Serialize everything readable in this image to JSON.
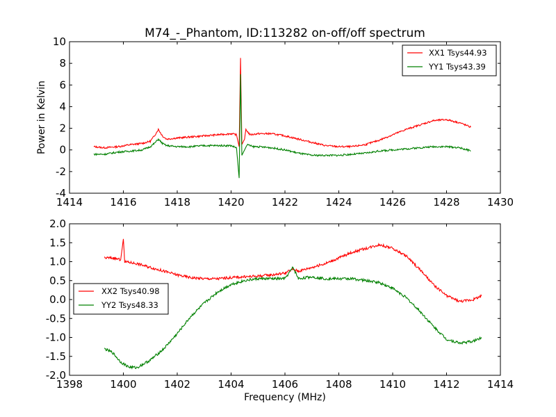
{
  "figure": {
    "title": "M74_-_Phantom, ID:113282 on-off/off spectrum"
  },
  "colors": {
    "xx": "#ff0000",
    "yy": "#008000"
  },
  "chart_data": [
    {
      "type": "line",
      "title": "M74_-_Phantom, ID:113282 on-off/off spectrum",
      "xlabel": "",
      "ylabel": "Power in Kelvin",
      "xlim": [
        1414,
        1430
      ],
      "ylim": [
        -4,
        10
      ],
      "xticks": [
        "1414",
        "1416",
        "1418",
        "1420",
        "1422",
        "1424",
        "1426",
        "1428",
        "1430"
      ],
      "yticks": [
        "-4",
        "-2",
        "0",
        "2",
        "4",
        "6",
        "8",
        "10"
      ],
      "grid": false,
      "legend": "top-right",
      "series": [
        {
          "name": "XX1 Tsys44.93",
          "color": "#ff0000",
          "points": [
            [
              1414.9,
              0.3
            ],
            [
              1415.3,
              0.2
            ],
            [
              1415.8,
              0.3
            ],
            [
              1416.3,
              0.5
            ],
            [
              1416.7,
              0.6
            ],
            [
              1417.0,
              0.8
            ],
            [
              1417.15,
              1.3
            ],
            [
              1417.3,
              1.9
            ],
            [
              1417.45,
              1.3
            ],
            [
              1417.6,
              1.0
            ],
            [
              1418.0,
              1.1
            ],
            [
              1418.5,
              1.2
            ],
            [
              1419.0,
              1.3
            ],
            [
              1419.5,
              1.4
            ],
            [
              1420.0,
              1.5
            ],
            [
              1420.2,
              1.4
            ],
            [
              1420.3,
              0.3
            ],
            [
              1420.35,
              8.5
            ],
            [
              1420.4,
              0.5
            ],
            [
              1420.5,
              1.0
            ],
            [
              1420.55,
              1.9
            ],
            [
              1420.7,
              1.4
            ],
            [
              1421.0,
              1.5
            ],
            [
              1421.5,
              1.5
            ],
            [
              1422.0,
              1.3
            ],
            [
              1422.5,
              1.0
            ],
            [
              1423.0,
              0.7
            ],
            [
              1423.5,
              0.4
            ],
            [
              1424.0,
              0.3
            ],
            [
              1424.5,
              0.3
            ],
            [
              1425.0,
              0.5
            ],
            [
              1425.5,
              0.9
            ],
            [
              1426.0,
              1.4
            ],
            [
              1426.5,
              1.9
            ],
            [
              1427.0,
              2.3
            ],
            [
              1427.5,
              2.7
            ],
            [
              1428.0,
              2.8
            ],
            [
              1428.5,
              2.5
            ],
            [
              1428.9,
              2.1
            ]
          ]
        },
        {
          "name": "YY1 Tsys43.39",
          "color": "#008000",
          "points": [
            [
              1414.9,
              -0.4
            ],
            [
              1415.3,
              -0.4
            ],
            [
              1415.8,
              -0.2
            ],
            [
              1416.3,
              -0.1
            ],
            [
              1416.7,
              0.0
            ],
            [
              1417.0,
              0.3
            ],
            [
              1417.15,
              0.6
            ],
            [
              1417.3,
              1.0
            ],
            [
              1417.45,
              0.6
            ],
            [
              1417.6,
              0.4
            ],
            [
              1418.0,
              0.3
            ],
            [
              1418.5,
              0.3
            ],
            [
              1419.0,
              0.4
            ],
            [
              1419.5,
              0.4
            ],
            [
              1420.0,
              0.4
            ],
            [
              1420.2,
              0.2
            ],
            [
              1420.3,
              -2.6
            ],
            [
              1420.35,
              7.0
            ],
            [
              1420.4,
              -0.5
            ],
            [
              1420.5,
              0.0
            ],
            [
              1420.6,
              0.5
            ],
            [
              1420.8,
              0.3
            ],
            [
              1421.0,
              0.3
            ],
            [
              1421.5,
              0.2
            ],
            [
              1422.0,
              0.0
            ],
            [
              1422.5,
              -0.3
            ],
            [
              1423.0,
              -0.5
            ],
            [
              1423.5,
              -0.5
            ],
            [
              1424.0,
              -0.5
            ],
            [
              1424.5,
              -0.4
            ],
            [
              1425.0,
              -0.3
            ],
            [
              1425.5,
              -0.1
            ],
            [
              1426.0,
              0.0
            ],
            [
              1426.5,
              0.1
            ],
            [
              1427.0,
              0.2
            ],
            [
              1427.5,
              0.3
            ],
            [
              1428.0,
              0.3
            ],
            [
              1428.5,
              0.2
            ],
            [
              1428.9,
              -0.1
            ]
          ]
        }
      ]
    },
    {
      "type": "line",
      "title": "",
      "xlabel": "Frequency (MHz)",
      "ylabel": "",
      "xlim": [
        1398,
        1414
      ],
      "ylim": [
        -2.0,
        2.0
      ],
      "xticks": [
        "1398",
        "1400",
        "1402",
        "1404",
        "1406",
        "1408",
        "1410",
        "1412",
        "1414"
      ],
      "yticks": [
        "-2.0",
        "-1.5",
        "-1.0",
        "-0.5",
        "0.0",
        "0.5",
        "1.0",
        "1.5",
        "2.0"
      ],
      "grid": false,
      "legend": "center-left",
      "series": [
        {
          "name": "XX2 Tsys40.98",
          "color": "#ff0000",
          "points": [
            [
              1399.3,
              1.1
            ],
            [
              1399.6,
              1.1
            ],
            [
              1399.9,
              1.05
            ],
            [
              1400.0,
              1.6
            ],
            [
              1400.05,
              1.0
            ],
            [
              1400.5,
              0.95
            ],
            [
              1401.0,
              0.85
            ],
            [
              1401.5,
              0.75
            ],
            [
              1402.0,
              0.65
            ],
            [
              1402.5,
              0.58
            ],
            [
              1403.0,
              0.55
            ],
            [
              1403.5,
              0.55
            ],
            [
              1404.0,
              0.58
            ],
            [
              1404.5,
              0.6
            ],
            [
              1405.0,
              0.62
            ],
            [
              1405.5,
              0.65
            ],
            [
              1406.0,
              0.7
            ],
            [
              1406.3,
              0.8
            ],
            [
              1406.5,
              0.75
            ],
            [
              1407.0,
              0.85
            ],
            [
              1407.5,
              0.95
            ],
            [
              1408.0,
              1.1
            ],
            [
              1408.5,
              1.25
            ],
            [
              1409.0,
              1.35
            ],
            [
              1409.5,
              1.45
            ],
            [
              1410.0,
              1.35
            ],
            [
              1410.5,
              1.15
            ],
            [
              1411.0,
              0.8
            ],
            [
              1411.5,
              0.4
            ],
            [
              1412.0,
              0.1
            ],
            [
              1412.5,
              -0.05
            ],
            [
              1413.0,
              0.0
            ],
            [
              1413.3,
              0.1
            ]
          ]
        },
        {
          "name": "YY2 Tsys48.33",
          "color": "#008000",
          "points": [
            [
              1399.3,
              -1.3
            ],
            [
              1399.6,
              -1.4
            ],
            [
              1399.9,
              -1.65
            ],
            [
              1400.2,
              -1.78
            ],
            [
              1400.5,
              -1.8
            ],
            [
              1401.0,
              -1.6
            ],
            [
              1401.5,
              -1.3
            ],
            [
              1402.0,
              -0.9
            ],
            [
              1402.5,
              -0.45
            ],
            [
              1403.0,
              -0.1
            ],
            [
              1403.5,
              0.2
            ],
            [
              1404.0,
              0.4
            ],
            [
              1404.5,
              0.5
            ],
            [
              1405.0,
              0.55
            ],
            [
              1405.5,
              0.55
            ],
            [
              1406.0,
              0.55
            ],
            [
              1406.3,
              0.85
            ],
            [
              1406.5,
              0.55
            ],
            [
              1407.0,
              0.6
            ],
            [
              1407.5,
              0.55
            ],
            [
              1408.0,
              0.55
            ],
            [
              1408.5,
              0.55
            ],
            [
              1409.0,
              0.5
            ],
            [
              1409.5,
              0.45
            ],
            [
              1410.0,
              0.3
            ],
            [
              1410.5,
              0.05
            ],
            [
              1411.0,
              -0.3
            ],
            [
              1411.5,
              -0.7
            ],
            [
              1412.0,
              -1.05
            ],
            [
              1412.5,
              -1.15
            ],
            [
              1413.0,
              -1.1
            ],
            [
              1413.3,
              -1.0
            ]
          ]
        }
      ]
    }
  ]
}
